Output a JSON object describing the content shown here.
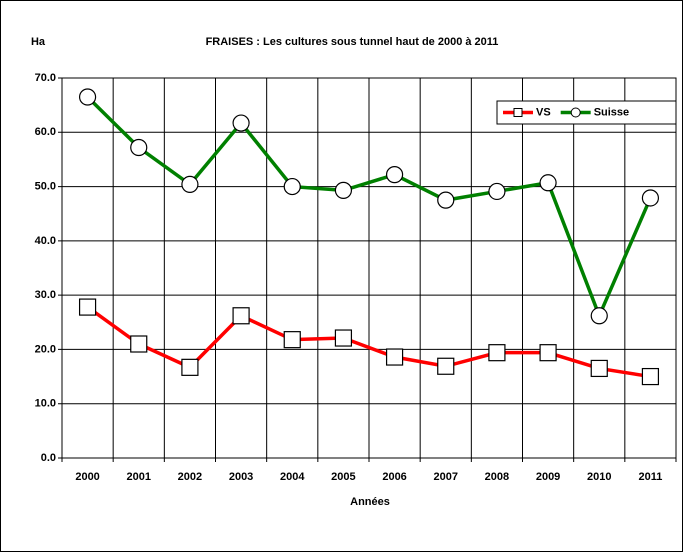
{
  "chart_data": {
    "type": "line",
    "title": "FRAISES : Les cultures sous tunnel haut de 2000 à 2011",
    "y_label": "Ha",
    "x_label": "Années",
    "categories": [
      "2000",
      "2001",
      "2002",
      "2003",
      "2004",
      "2005",
      "2006",
      "2007",
      "2008",
      "2009",
      "2010",
      "2011"
    ],
    "series": [
      {
        "name": "VS",
        "color": "#ff0000",
        "marker": "square",
        "values": [
          27.8,
          21.0,
          16.7,
          26.2,
          21.8,
          22.1,
          18.6,
          16.9,
          19.4,
          19.4,
          16.5,
          15.0
        ]
      },
      {
        "name": "Suisse",
        "color": "#008000",
        "marker": "circle",
        "values": [
          66.5,
          57.2,
          50.4,
          61.7,
          50.0,
          49.3,
          52.2,
          47.5,
          49.1,
          50.7,
          26.2,
          47.9
        ]
      }
    ],
    "ylim": [
      0,
      70
    ],
    "yticks": [
      {
        "value": 0,
        "label": "0.0"
      },
      {
        "value": 10,
        "label": "10.0"
      },
      {
        "value": 20,
        "label": "20.0"
      },
      {
        "value": 30,
        "label": "30.0"
      },
      {
        "value": 40,
        "label": "40.0"
      },
      {
        "value": 50,
        "label": "50.0"
      },
      {
        "value": 60,
        "label": "60.0"
      },
      {
        "value": 70,
        "label": "70.0"
      }
    ],
    "grid": true,
    "legend": "top-right"
  }
}
